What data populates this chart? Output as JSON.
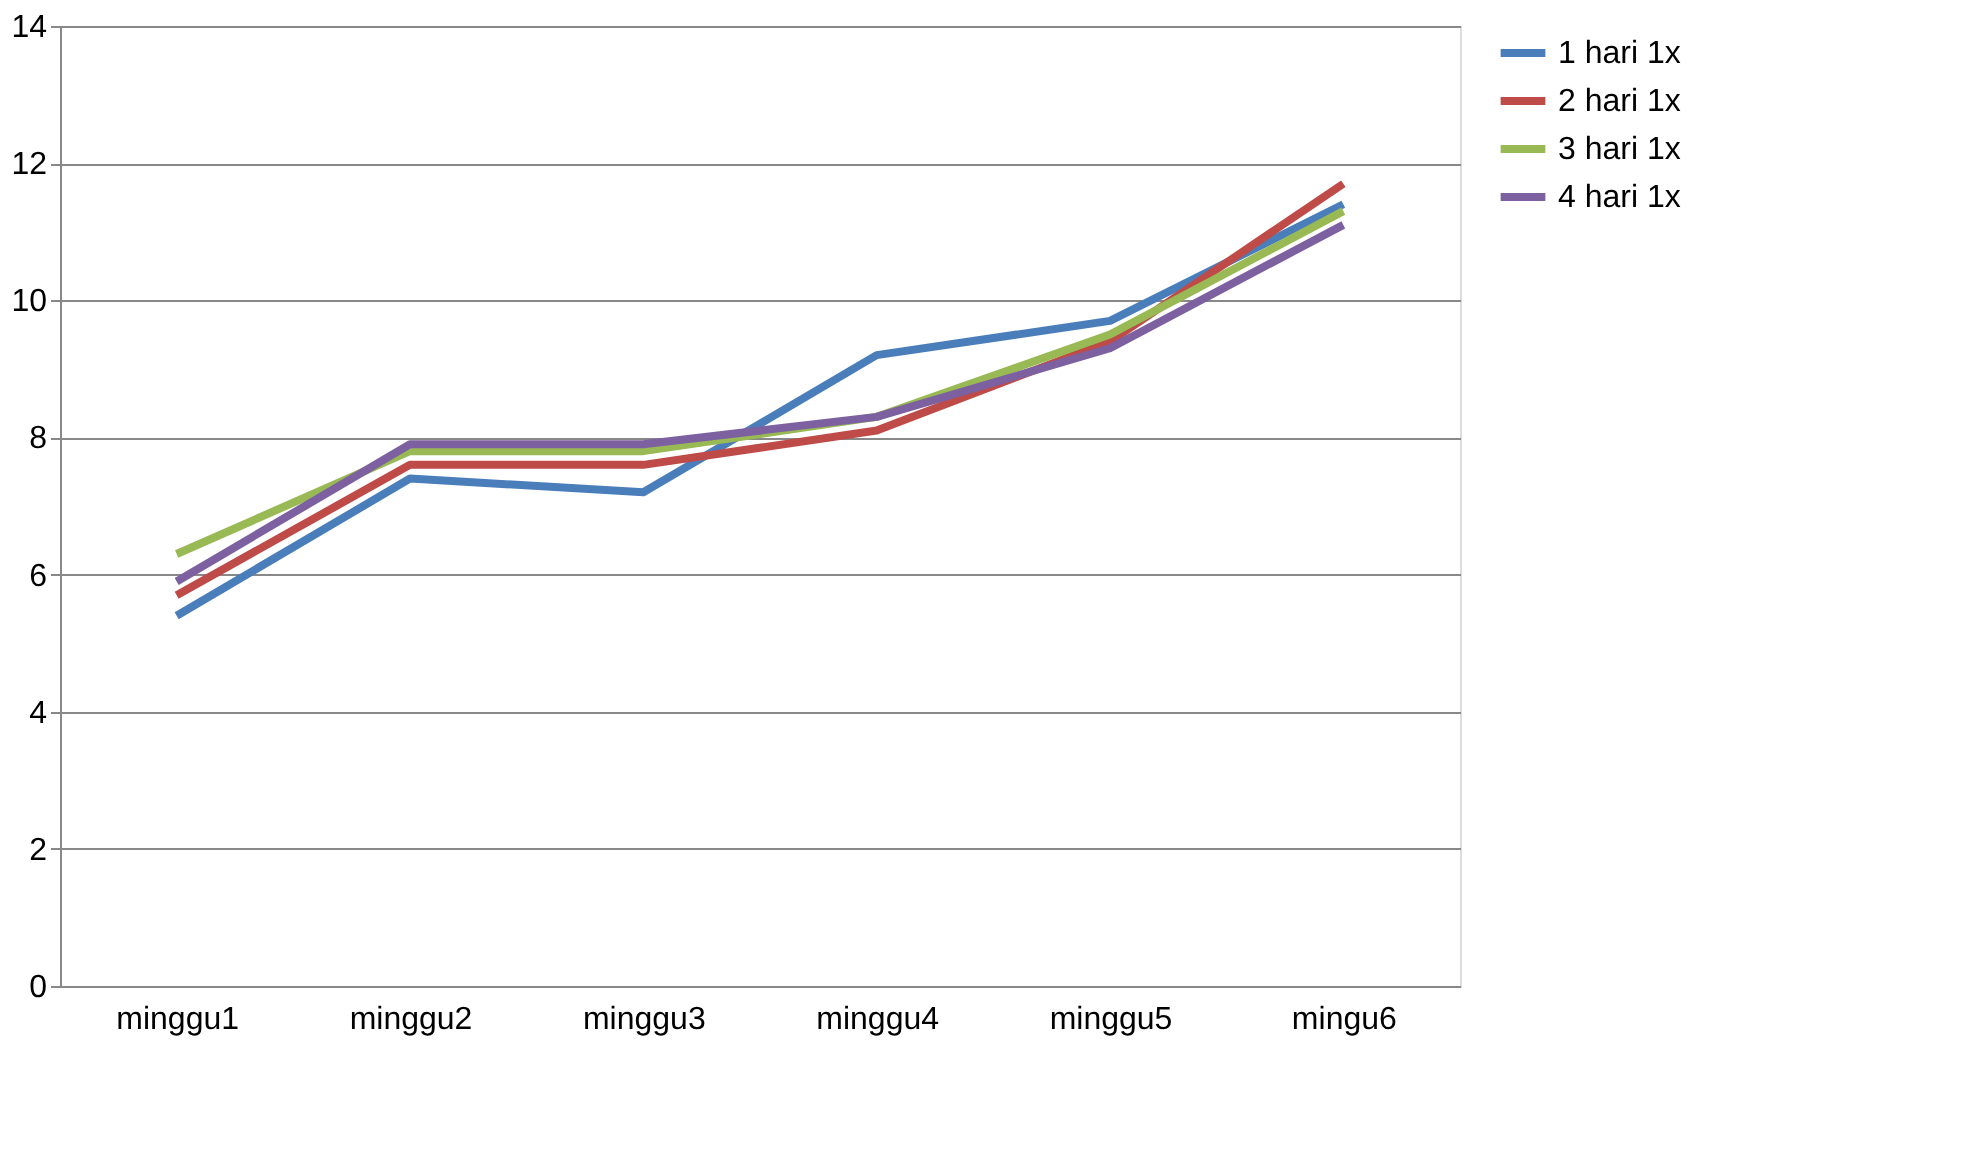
{
  "chart_data": {
    "type": "line",
    "categories": [
      "minggu1",
      "minggu2",
      "minggu3",
      "minggu4",
      "minggu5",
      "mingu6"
    ],
    "series": [
      {
        "name": "1 hari 1x",
        "color": "#4a7ebb",
        "values": [
          5.4,
          7.4,
          7.2,
          9.2,
          9.7,
          11.4
        ]
      },
      {
        "name": "2 hari 1x",
        "color": "#be4b48",
        "values": [
          5.7,
          7.6,
          7.6,
          8.1,
          9.4,
          11.7
        ]
      },
      {
        "name": "3 hari 1x",
        "color": "#98b954",
        "values": [
          6.3,
          7.8,
          7.8,
          8.3,
          9.5,
          11.3
        ]
      },
      {
        "name": "4 hari 1x",
        "color": "#7d60a0",
        "values": [
          5.9,
          7.9,
          7.9,
          8.3,
          9.3,
          11.1
        ]
      }
    ],
    "ylim": [
      0,
      14
    ],
    "yticks": [
      0,
      2,
      4,
      6,
      8,
      10,
      12,
      14
    ],
    "grid": "y",
    "legend": "right",
    "marker": "none",
    "line_style": "solid"
  }
}
